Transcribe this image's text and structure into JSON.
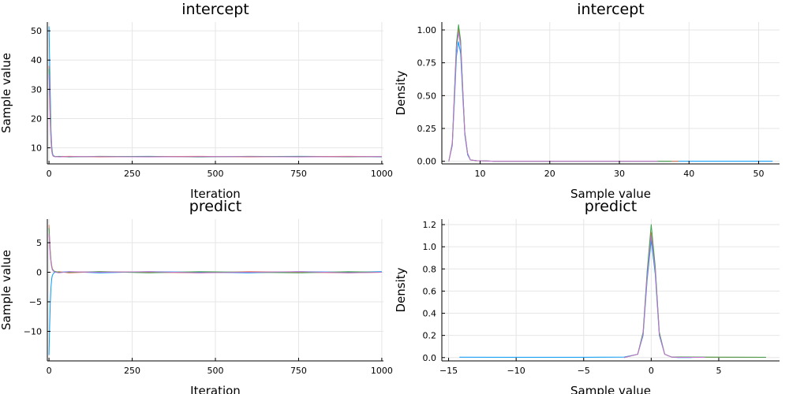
{
  "colors": [
    "#009AF9",
    "#E26F46",
    "#3EA44E",
    "#C271D2"
  ],
  "chart_data": [
    {
      "type": "line",
      "title": "intercept",
      "xlabel": "Iteration",
      "ylabel": "Sample value",
      "xlim": [
        -5,
        1005
      ],
      "ylim": [
        4.5,
        53
      ],
      "xticks": [
        0,
        250,
        500,
        750,
        1000
      ],
      "xtick_labels": [
        "0",
        "250",
        "500",
        "750",
        "1000"
      ],
      "yticks": [
        10,
        20,
        30,
        40,
        50
      ],
      "ytick_labels": [
        "10",
        "20",
        "30",
        "40",
        "50"
      ],
      "grid": true,
      "legend": "none",
      "series": [
        {
          "x": [
            0,
            2,
            4,
            6,
            8,
            10,
            12,
            15,
            20,
            30,
            60,
            150,
            300,
            450,
            600,
            750,
            900,
            1000
          ],
          "y": [
            51.5,
            39,
            27,
            16,
            11,
            8.5,
            7.5,
            7.2,
            7,
            7.1,
            6.9,
            7,
            7.1,
            6.9,
            7,
            7.1,
            7,
            6.9
          ]
        },
        {
          "x": [
            0,
            2,
            4,
            6,
            8,
            10,
            12,
            15,
            20,
            30,
            60,
            150,
            300,
            450,
            600,
            750,
            900,
            1000
          ],
          "y": [
            38,
            30,
            22,
            14,
            10,
            8,
            7.4,
            7.1,
            7,
            7,
            7.1,
            6.9,
            7,
            7.1,
            6.9,
            7,
            7.1,
            7
          ]
        },
        {
          "x": [
            0,
            2,
            4,
            6,
            8,
            10,
            12,
            15,
            20,
            30,
            60,
            150,
            300,
            450,
            600,
            750,
            900,
            1000
          ],
          "y": [
            37,
            28,
            20,
            13,
            9.5,
            8,
            7.3,
            7.1,
            7,
            7,
            6.9,
            7.1,
            7,
            6.9,
            7.1,
            7,
            6.9,
            7
          ]
        },
        {
          "x": [
            0,
            2,
            4,
            6,
            8,
            10,
            12,
            15,
            20,
            30,
            60,
            150,
            300,
            450,
            600,
            750,
            900,
            1000
          ],
          "y": [
            35,
            26,
            18,
            12,
            9,
            7.8,
            7.2,
            7,
            7,
            6.9,
            7,
            7,
            6.9,
            7,
            7,
            6.9,
            7,
            7
          ]
        }
      ]
    },
    {
      "type": "line",
      "title": "intercept",
      "xlabel": "Sample value",
      "ylabel": "Density",
      "xlim": [
        4.5,
        53
      ],
      "ylim": [
        -0.02,
        1.06
      ],
      "xticks": [
        10,
        20,
        30,
        40,
        50
      ],
      "xtick_labels": [
        "10",
        "20",
        "30",
        "40",
        "50"
      ],
      "yticks": [
        0,
        0.25,
        0.5,
        0.75,
        1.0
      ],
      "ytick_labels": [
        "0.00",
        "0.25",
        "0.50",
        "0.75",
        "1.00"
      ],
      "grid": true,
      "legend": "none",
      "series": [
        {
          "x": [
            5.5,
            6,
            6.3,
            6.6,
            6.9,
            7.2,
            7.5,
            7.8,
            8.2,
            8.6,
            9.5,
            12,
            20,
            30,
            40,
            52
          ],
          "y": [
            0,
            0.12,
            0.45,
            0.8,
            0.91,
            0.82,
            0.5,
            0.2,
            0.05,
            0.01,
            0.005,
            0,
            0,
            0,
            0,
            0
          ]
        },
        {
          "x": [
            5.5,
            6,
            6.3,
            6.6,
            6.9,
            7.2,
            7.5,
            7.8,
            8.2,
            8.6,
            9.5,
            12,
            20,
            30,
            38.5
          ],
          "y": [
            0,
            0.13,
            0.5,
            0.88,
            1.01,
            0.9,
            0.55,
            0.22,
            0.06,
            0.01,
            0.005,
            0,
            0,
            0,
            0
          ]
        },
        {
          "x": [
            5.5,
            6,
            6.3,
            6.6,
            6.9,
            7.2,
            7.5,
            7.8,
            8.2,
            8.6,
            9.5,
            12,
            20,
            30,
            37.5
          ],
          "y": [
            0,
            0.14,
            0.52,
            0.9,
            1.04,
            0.92,
            0.56,
            0.22,
            0.06,
            0.01,
            0.005,
            0,
            0,
            0,
            0
          ]
        },
        {
          "x": [
            5.5,
            6,
            6.3,
            6.6,
            6.9,
            7.2,
            7.5,
            7.8,
            8.2,
            8.6,
            9.5,
            12,
            20,
            30,
            35.5
          ],
          "y": [
            0,
            0.13,
            0.49,
            0.86,
            0.98,
            0.88,
            0.54,
            0.21,
            0.06,
            0.01,
            0.005,
            0,
            0,
            0,
            0
          ]
        }
      ]
    },
    {
      "type": "line",
      "title": "predict",
      "xlabel": "Iteration",
      "ylabel": "Sample value",
      "xlim": [
        -5,
        1005
      ],
      "ylim": [
        -15,
        9
      ],
      "xticks": [
        0,
        250,
        500,
        750,
        1000
      ],
      "xtick_labels": [
        "0",
        "250",
        "500",
        "750",
        "1000"
      ],
      "yticks": [
        -10,
        -5,
        0,
        5
      ],
      "ytick_labels": [
        "−10",
        "−5",
        "0",
        "5"
      ],
      "grid": true,
      "legend": "none",
      "series": [
        {
          "x": [
            0,
            2,
            4,
            6,
            8,
            10,
            15,
            20,
            30,
            60,
            150,
            300,
            450,
            600,
            750,
            900,
            1000
          ],
          "y": [
            -14,
            -9,
            -5,
            -2.5,
            -1.2,
            -0.5,
            -0.1,
            0.1,
            0,
            0.1,
            -0.1,
            0.1,
            0,
            -0.1,
            0.1,
            0,
            0.1
          ]
        },
        {
          "x": [
            0,
            2,
            4,
            6,
            8,
            10,
            15,
            20,
            30,
            60,
            150,
            300,
            450,
            600,
            750,
            900,
            1000
          ],
          "y": [
            8,
            5.5,
            3.5,
            2,
            1.2,
            0.6,
            0.2,
            0,
            0.1,
            -0.1,
            0.1,
            0,
            -0.1,
            0.1,
            0,
            -0.1,
            0
          ]
        },
        {
          "x": [
            0,
            2,
            4,
            6,
            8,
            10,
            15,
            20,
            30,
            60,
            150,
            300,
            450,
            600,
            750,
            900,
            1000
          ],
          "y": [
            7.5,
            5,
            3.2,
            1.8,
            1,
            0.5,
            0.2,
            0.1,
            0,
            0,
            0.1,
            -0.1,
            0.1,
            0,
            -0.1,
            0.1,
            0
          ]
        },
        {
          "x": [
            0,
            2,
            4,
            6,
            8,
            10,
            15,
            20,
            30,
            60,
            150,
            300,
            450,
            600,
            750,
            900,
            1000
          ],
          "y": [
            6.5,
            4.5,
            2.8,
            1.6,
            0.9,
            0.4,
            0.1,
            0,
            -0.1,
            0.1,
            0,
            0.1,
            -0.1,
            0,
            0.1,
            -0.1,
            0
          ]
        }
      ]
    },
    {
      "type": "line",
      "title": "predict",
      "xlabel": "Sample value",
      "ylabel": "Density",
      "xlim": [
        -15.5,
        9.5
      ],
      "ylim": [
        -0.03,
        1.25
      ],
      "xticks": [
        -15,
        -10,
        -5,
        0,
        5
      ],
      "xtick_labels": [
        "−15",
        "−10",
        "−5",
        "0",
        "5"
      ],
      "yticks": [
        0,
        0.2,
        0.4,
        0.6,
        0.8,
        1.0,
        1.2
      ],
      "ytick_labels": [
        "0.0",
        "0.2",
        "0.4",
        "0.6",
        "0.8",
        "1.0",
        "1.2"
      ],
      "grid": true,
      "legend": "none",
      "series": [
        {
          "x": [
            -14.2,
            -10,
            -5,
            -2,
            -1,
            -0.6,
            -0.3,
            0,
            0.3,
            0.6,
            1,
            1.5,
            2,
            3
          ],
          "y": [
            0.004,
            0.003,
            0.003,
            0.005,
            0.03,
            0.2,
            0.7,
            1.06,
            0.75,
            0.2,
            0.03,
            0.005,
            0,
            0
          ]
        },
        {
          "x": [
            -2,
            -1,
            -0.6,
            -0.3,
            0,
            0.3,
            0.6,
            1,
            1.5,
            2,
            5,
            8.5
          ],
          "y": [
            0,
            0.03,
            0.22,
            0.75,
            1.13,
            0.8,
            0.22,
            0.03,
            0.005,
            0.003,
            0.003,
            0.002
          ]
        },
        {
          "x": [
            -2,
            -1,
            -0.6,
            -0.3,
            0,
            0.3,
            0.6,
            1,
            1.5,
            2,
            5,
            8.5
          ],
          "y": [
            0,
            0.03,
            0.23,
            0.78,
            1.2,
            0.82,
            0.23,
            0.03,
            0.005,
            0.006,
            0.004,
            0.003
          ]
        },
        {
          "x": [
            -2,
            -1,
            -0.6,
            -0.3,
            0,
            0.3,
            0.6,
            1,
            1.5,
            2,
            4
          ],
          "y": [
            0,
            0.03,
            0.21,
            0.74,
            1.1,
            0.78,
            0.21,
            0.03,
            0.005,
            0.003,
            0.002
          ]
        }
      ]
    }
  ]
}
